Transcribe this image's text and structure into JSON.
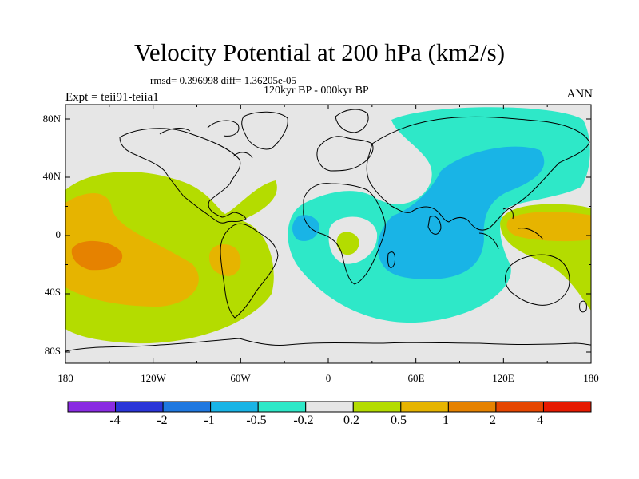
{
  "title": "Velocity Potential at 200 hPa (km2/s)",
  "stats": "rmsd= 0.396998 diff= 1.36205e-05",
  "subtitle": "120kyr BP - 000kyr BP",
  "left_label": "Expt = teii91-teiia1",
  "right_label": "ANN",
  "lat_ticks": [
    "80N",
    "40N",
    "0",
    "40S",
    "80S"
  ],
  "lon_ticks": [
    "180",
    "120W",
    "60W",
    "0",
    "60E",
    "120E",
    "180"
  ],
  "colorbar": {
    "colors": [
      "#8a2be2",
      "#2a35d8",
      "#1f78e0",
      "#19b4e6",
      "#2ee8c8",
      "#e6e6e6",
      "#b4dc00",
      "#e6b400",
      "#e68200",
      "#e64600",
      "#e61a00"
    ],
    "labels": [
      "-4",
      "-2",
      "-1",
      "-0.5",
      "-0.2",
      "0.2",
      "0.5",
      "1",
      "2",
      "4"
    ]
  },
  "fields": {
    "neutral": "#e6e6e6",
    "pos1": "#b4dc00",
    "pos2": "#e6b400",
    "pos3": "#e68200",
    "neg1": "#2ee8c8",
    "neg2": "#19b4e6"
  }
}
